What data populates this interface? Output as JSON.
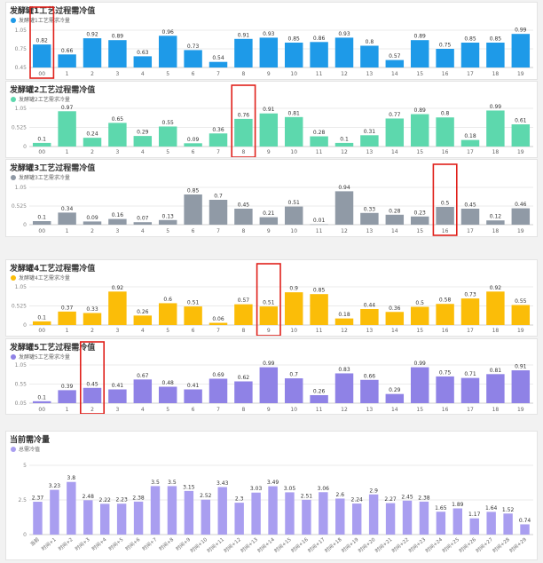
{
  "chart_data": [
    {
      "type": "bar",
      "title": "发酵罐1工艺过程需冷值",
      "legend": "发酵罐1工艺需求冷量",
      "color": "#1e9ae8",
      "categories": [
        "00",
        "1",
        "2",
        "3",
        "4",
        "5",
        "6",
        "7",
        "8",
        "9",
        "10",
        "11",
        "12",
        "13",
        "14",
        "15",
        "16",
        "17",
        "18",
        "19"
      ],
      "values": [
        0.82,
        0.66,
        0.92,
        0.89,
        0.63,
        0.96,
        0.73,
        0.54,
        0.91,
        0.93,
        0.85,
        0.86,
        0.93,
        0.8,
        0.57,
        0.89,
        0.75,
        0.85,
        0.85,
        0.99
      ],
      "yticks": [
        0.45,
        0.75,
        1.05
      ],
      "ylim": [
        0.45,
        1.05
      ],
      "highlight_index": 0
    },
    {
      "type": "bar",
      "title": "发酵罐2工艺过程需冷值",
      "legend": "发酵罐2工艺需求冷量",
      "color": "#5dd8ad",
      "categories": [
        "00",
        "1",
        "2",
        "3",
        "4",
        "5",
        "6",
        "7",
        "8",
        "9",
        "10",
        "11",
        "12",
        "13",
        "14",
        "15",
        "16",
        "17",
        "18",
        "19"
      ],
      "values": [
        0.1,
        0.97,
        0.24,
        0.65,
        0.29,
        0.55,
        0.09,
        0.36,
        0.76,
        0.91,
        0.81,
        0.28,
        0.1,
        0.31,
        0.77,
        0.89,
        0.8,
        0.18,
        0.99,
        0.61
      ],
      "yticks": [
        0,
        0.525,
        1.05
      ],
      "ylim": [
        0,
        1.05
      ],
      "highlight_index": 8
    },
    {
      "type": "bar",
      "title": "发酵罐3工艺过程需冷值",
      "legend": "发酵罐3工艺需求冷量",
      "color": "#909aa6",
      "categories": [
        "00",
        "1",
        "2",
        "3",
        "4",
        "5",
        "6",
        "7",
        "8",
        "9",
        "10",
        "11",
        "12",
        "13",
        "14",
        "15",
        "16",
        "17",
        "18",
        "19"
      ],
      "values": [
        0.1,
        0.34,
        0.09,
        0.16,
        0.07,
        0.13,
        0.85,
        0.7,
        0.45,
        0.21,
        0.51,
        0.01,
        0.94,
        0.33,
        0.28,
        0.23,
        0.5,
        0.45,
        0.12,
        0.46
      ],
      "yticks": [
        0,
        0.525,
        1.05
      ],
      "ylim": [
        0,
        1.05
      ],
      "highlight_index": 16
    },
    {
      "type": "bar",
      "title": "发酵罐4工艺过程需冷值",
      "legend": "发酵罐4工艺需求冷量",
      "color": "#fbbd08",
      "categories": [
        "00",
        "1",
        "2",
        "3",
        "4",
        "5",
        "6",
        "7",
        "8",
        "9",
        "10",
        "11",
        "12",
        "13",
        "14",
        "15",
        "16",
        "17",
        "18",
        "19"
      ],
      "values": [
        0.1,
        0.37,
        0.33,
        0.92,
        0.26,
        0.6,
        0.51,
        0.06,
        0.57,
        0.51,
        0.9,
        0.85,
        0.18,
        0.44,
        0.36,
        0.5,
        0.58,
        0.73,
        0.92,
        0.55
      ],
      "yticks": [
        0,
        0.525,
        1.05
      ],
      "ylim": [
        0,
        1.05
      ],
      "highlight_index": 9
    },
    {
      "type": "bar",
      "title": "发酵罐5工艺过程需冷值",
      "legend": "发酵罐5工艺需求冷量",
      "color": "#8f82e6",
      "categories": [
        "00",
        "1",
        "2",
        "3",
        "4",
        "5",
        "6",
        "7",
        "8",
        "9",
        "10",
        "11",
        "12",
        "13",
        "14",
        "15",
        "16",
        "17",
        "18",
        "19"
      ],
      "values": [
        0.1,
        0.39,
        0.45,
        0.41,
        0.67,
        0.48,
        0.41,
        0.69,
        0.62,
        0.99,
        0.7,
        0.26,
        0.83,
        0.66,
        0.29,
        0.99,
        0.75,
        0.71,
        0.81,
        0.91
      ],
      "yticks": [
        0.05,
        0.55,
        1.05
      ],
      "ylim": [
        0.05,
        1.05
      ],
      "highlight_index": 2
    },
    {
      "type": "bar",
      "title": "当前需冷量",
      "legend": "总需冷值",
      "color": "#a99ef0",
      "categories": [
        "当前",
        "时间+1",
        "时间+2",
        "时间+3",
        "时间+4",
        "时间+5",
        "时间+6",
        "时间+7",
        "时间+8",
        "时间+9",
        "时间+10",
        "时间+11",
        "时间+12",
        "时间+13",
        "时间+14",
        "时间+15",
        "时间+16",
        "时间+17",
        "时间+18",
        "时间+19",
        "时间+20",
        "时间+21",
        "时间+22",
        "时间+23",
        "时间+24",
        "时间+25",
        "时间+26",
        "时间+27",
        "时间+28",
        "时间+29"
      ],
      "values": [
        2.37,
        3.23,
        3.8,
        2.48,
        2.22,
        2.23,
        2.38,
        3.5,
        3.5,
        3.15,
        2.52,
        3.43,
        2.3,
        3.03,
        3.49,
        3.05,
        2.51,
        3.06,
        2.6,
        2.24,
        2.9,
        2.27,
        2.45,
        2.38,
        1.65,
        1.89,
        1.17,
        1.64,
        1.52,
        0.74
      ],
      "yticks": [
        0,
        2.5,
        5
      ],
      "ylim": [
        0,
        5
      ],
      "highlight_index": null
    }
  ]
}
